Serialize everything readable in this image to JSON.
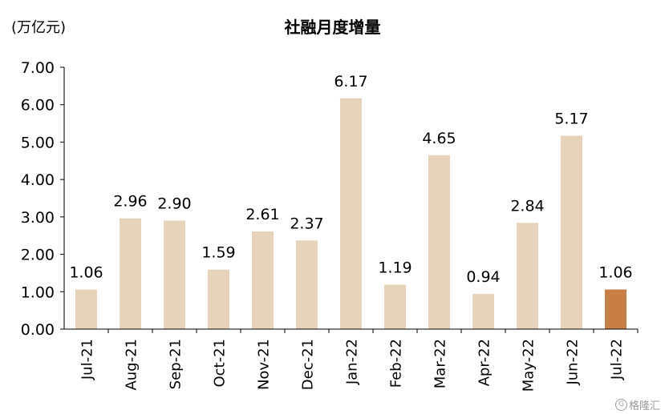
{
  "chart_data": {
    "type": "bar",
    "title": "社融月度增量",
    "unit_label": "(万亿元)",
    "categories": [
      "Jul-21",
      "Aug-21",
      "Sep-21",
      "Oct-21",
      "Nov-21",
      "Dec-21",
      "Jan-22",
      "Feb-22",
      "Mar-22",
      "Apr-22",
      "May-22",
      "Jun-22",
      "Jul-22"
    ],
    "values": [
      1.06,
      2.96,
      2.9,
      1.59,
      2.61,
      2.37,
      6.17,
      1.19,
      4.65,
      0.94,
      2.84,
      5.17,
      1.06
    ],
    "value_labels": [
      "1.06",
      "2.96",
      "2.90",
      "1.59",
      "2.61",
      "2.37",
      "6.17",
      "1.19",
      "4.65",
      "0.94",
      "2.84",
      "5.17",
      "1.06"
    ],
    "ylim": [
      0,
      7
    ],
    "yticks": [
      "0.00",
      "1.00",
      "2.00",
      "3.00",
      "4.00",
      "5.00",
      "6.00",
      "7.00"
    ],
    "grid": false,
    "bar_color": "#E6D3B9",
    "highlight_color": "#C87F45",
    "highlight_index": 12
  },
  "watermark": {
    "icon": "G",
    "text": "格隆汇"
  }
}
